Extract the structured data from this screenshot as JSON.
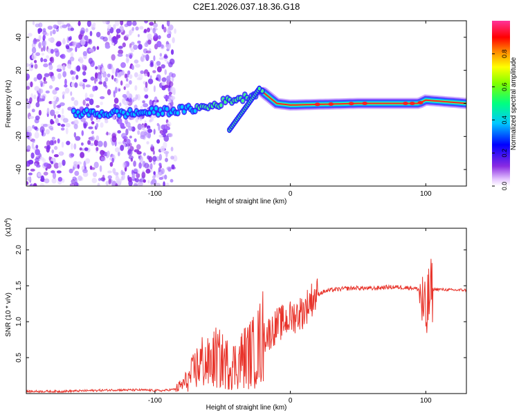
{
  "title": "C2E1.2026.037.18.36.G18",
  "chart_data": [
    {
      "type": "heatmap",
      "title": "C2E1.2026.037.18.36.G18",
      "xlabel": "Height of straight line (km)",
      "ylabel": "Frequency (Hz)",
      "xlim": [
        -195,
        130
      ],
      "ylim": [
        -50,
        50
      ],
      "xticks": [
        -100,
        0,
        100
      ],
      "xtick_labels": [
        "-100",
        "0",
        "100"
      ],
      "yticks": [
        -40,
        -20,
        0,
        20,
        40
      ],
      "ytick_labels": [
        "-40",
        "-20",
        "0",
        "20",
        "40"
      ],
      "colorbar": {
        "label": "Normalized spectral amplitude",
        "range": [
          0,
          1
        ],
        "ticks": [
          0.0,
          0.2,
          0.4,
          0.6,
          0.8
        ],
        "tick_labels": [
          "0.0",
          "0.2",
          "0.4",
          "0.6",
          "0.8"
        ]
      },
      "ridge": {
        "description_points_x_km": [
          -160,
          -120,
          -80,
          -60,
          -45,
          -30,
          -22,
          -10,
          0,
          50,
          95,
          100,
          130
        ],
        "frequency_hz": [
          -6,
          -6,
          -4,
          -2,
          2,
          4,
          8,
          0,
          -1,
          0,
          0,
          2,
          0
        ]
      },
      "branch": {
        "x_km": [
          -45,
          -22
        ],
        "frequency_hz": [
          -16,
          10
        ]
      }
    },
    {
      "type": "line",
      "xlabel": "Height of straight line (km)",
      "ylabel": "SNR (10 * v/v)",
      "multiplier_label": "(x10",
      "multiplier_exp": "4",
      "multiplier_close": ")",
      "xlim": [
        -195,
        130
      ],
      "ylim": [
        0,
        2.3
      ],
      "xticks": [
        -100,
        0,
        100
      ],
      "xtick_labels": [
        "-100",
        "0",
        "100"
      ],
      "yticks": [
        0.5,
        1.0,
        1.5,
        2.0
      ],
      "ytick_labels": [
        "0.5",
        "1.0",
        "1.5",
        "2.0"
      ],
      "series": [
        {
          "name": "SNR",
          "color": "#e8332a",
          "x": [
            -195,
            -170,
            -150,
            -130,
            -110,
            -95,
            -85,
            -80,
            -75,
            -70,
            -65,
            -60,
            -55,
            -50,
            -45,
            -40,
            -35,
            -30,
            -25,
            -20,
            -15,
            -10,
            -5,
            0,
            5,
            10,
            15,
            20,
            25,
            30,
            40,
            50,
            60,
            70,
            80,
            90,
            95,
            98,
            100,
            102,
            105,
            110,
            120,
            130
          ],
          "y": [
            0.03,
            0.03,
            0.04,
            0.05,
            0.05,
            0.04,
            0.06,
            0.12,
            0.2,
            0.35,
            0.45,
            0.4,
            0.5,
            0.45,
            0.4,
            0.4,
            0.5,
            0.55,
            0.6,
            0.8,
            0.85,
            0.95,
            1.0,
            1.05,
            1.1,
            1.15,
            1.3,
            1.38,
            1.42,
            1.44,
            1.46,
            1.47,
            1.46,
            1.48,
            1.48,
            1.47,
            1.45,
            1.2,
            1.0,
            1.3,
            1.45,
            1.45,
            1.44,
            1.44
          ]
        }
      ]
    }
  ]
}
